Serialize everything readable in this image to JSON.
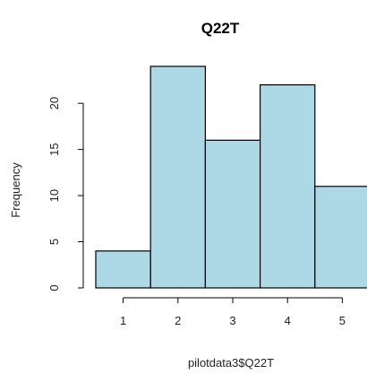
{
  "chart_data": {
    "type": "bar",
    "title": "Q22T",
    "xlabel": "pilotdata3$Q22T",
    "ylabel": "Frequency",
    "categories": [
      "1",
      "2",
      "3",
      "4",
      "5"
    ],
    "values": [
      4,
      24,
      16,
      22,
      11
    ],
    "bin_edges": [
      0.5,
      1.5,
      2.5,
      3.5,
      4.5,
      5.5
    ],
    "x_ticks": [
      1,
      2,
      3,
      4,
      5
    ],
    "y_ticks": [
      0,
      5,
      10,
      15,
      20
    ],
    "ylim": [
      0,
      24
    ],
    "bar_color": "#add8e6",
    "grid": false,
    "legend": "none"
  }
}
